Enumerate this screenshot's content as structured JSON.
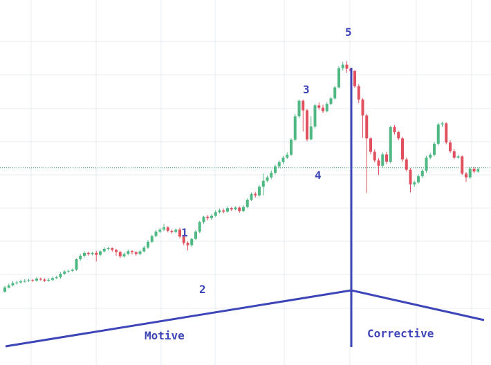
{
  "colors": {
    "background": "#ffffff",
    "grid": "#e6edf1",
    "bullish": "#4fb883",
    "bearish": "#e0505e",
    "wick_bull": "#4fb883",
    "wick_bear": "#e0505e",
    "annotation": "#3d45b8",
    "price_line": "#2f9c6a"
  },
  "chart_data": {
    "type": "candlestick",
    "title": "",
    "xlabel": "",
    "ylabel": "",
    "grid": true,
    "ylim": [
      0,
      1
    ],
    "current_price_line": 0.565,
    "candles": [
      [
        0.138,
        0.153,
        0.135,
        0.159
      ],
      [
        0.152,
        0.16,
        0.149,
        0.166
      ],
      [
        0.16,
        0.168,
        0.157,
        0.175
      ],
      [
        0.168,
        0.17,
        0.162,
        0.176
      ],
      [
        0.17,
        0.174,
        0.166,
        0.179
      ],
      [
        0.173,
        0.176,
        0.169,
        0.181
      ],
      [
        0.176,
        0.178,
        0.171,
        0.183
      ],
      [
        0.178,
        0.176,
        0.172,
        0.182
      ],
      [
        0.176,
        0.183,
        0.173,
        0.188
      ],
      [
        0.183,
        0.18,
        0.176,
        0.187
      ],
      [
        0.18,
        0.176,
        0.172,
        0.184
      ],
      [
        0.176,
        0.179,
        0.173,
        0.185
      ],
      [
        0.179,
        0.185,
        0.175,
        0.19
      ],
      [
        0.185,
        0.188,
        0.181,
        0.193
      ],
      [
        0.188,
        0.2,
        0.184,
        0.205
      ],
      [
        0.2,
        0.208,
        0.196,
        0.212
      ],
      [
        0.208,
        0.21,
        0.203,
        0.214
      ],
      [
        0.21,
        0.214,
        0.206,
        0.218
      ],
      [
        0.214,
        0.25,
        0.21,
        0.253
      ],
      [
        0.25,
        0.262,
        0.245,
        0.268
      ],
      [
        0.262,
        0.272,
        0.256,
        0.278
      ],
      [
        0.272,
        0.268,
        0.262,
        0.276
      ],
      [
        0.268,
        0.272,
        0.263,
        0.276
      ],
      [
        0.272,
        0.265,
        0.242,
        0.279
      ],
      [
        0.265,
        0.277,
        0.26,
        0.281
      ],
      [
        0.277,
        0.286,
        0.273,
        0.292
      ],
      [
        0.286,
        0.288,
        0.281,
        0.293
      ],
      [
        0.288,
        0.282,
        0.276,
        0.291
      ],
      [
        0.282,
        0.275,
        0.262,
        0.286
      ],
      [
        0.275,
        0.26,
        0.254,
        0.279
      ],
      [
        0.26,
        0.268,
        0.256,
        0.273
      ],
      [
        0.268,
        0.278,
        0.264,
        0.283
      ],
      [
        0.278,
        0.274,
        0.266,
        0.281
      ],
      [
        0.274,
        0.268,
        0.262,
        0.278
      ],
      [
        0.268,
        0.277,
        0.264,
        0.282
      ],
      [
        0.277,
        0.29,
        0.273,
        0.296
      ],
      [
        0.29,
        0.31,
        0.286,
        0.316
      ],
      [
        0.31,
        0.33,
        0.306,
        0.334
      ],
      [
        0.33,
        0.345,
        0.326,
        0.35
      ],
      [
        0.345,
        0.352,
        0.34,
        0.358
      ],
      [
        0.352,
        0.36,
        0.348,
        0.372
      ],
      [
        0.36,
        0.348,
        0.342,
        0.364
      ],
      [
        0.348,
        0.344,
        0.338,
        0.352
      ],
      [
        0.344,
        0.352,
        0.34,
        0.356
      ],
      [
        0.352,
        0.328,
        0.322,
        0.358
      ],
      [
        0.328,
        0.306,
        0.298,
        0.334
      ],
      [
        0.306,
        0.298,
        0.28,
        0.312
      ],
      [
        0.298,
        0.32,
        0.292,
        0.324
      ],
      [
        0.32,
        0.345,
        0.316,
        0.35
      ],
      [
        0.345,
        0.378,
        0.34,
        0.382
      ],
      [
        0.378,
        0.396,
        0.372,
        0.4
      ],
      [
        0.396,
        0.392,
        0.384,
        0.402
      ],
      [
        0.392,
        0.4,
        0.386,
        0.406
      ],
      [
        0.4,
        0.412,
        0.395,
        0.418
      ],
      [
        0.412,
        0.418,
        0.408,
        0.424
      ],
      [
        0.418,
        0.414,
        0.408,
        0.424
      ],
      [
        0.414,
        0.426,
        0.41,
        0.432
      ],
      [
        0.426,
        0.422,
        0.416,
        0.43
      ],
      [
        0.422,
        0.428,
        0.418,
        0.432
      ],
      [
        0.428,
        0.416,
        0.41,
        0.432
      ],
      [
        0.416,
        0.43,
        0.412,
        0.436
      ],
      [
        0.43,
        0.455,
        0.426,
        0.46
      ],
      [
        0.455,
        0.475,
        0.45,
        0.48
      ],
      [
        0.475,
        0.47,
        0.462,
        0.482
      ],
      [
        0.47,
        0.5,
        0.465,
        0.506
      ],
      [
        0.5,
        0.52,
        0.47,
        0.545
      ],
      [
        0.52,
        0.532,
        0.515,
        0.538
      ],
      [
        0.532,
        0.548,
        0.526,
        0.556
      ],
      [
        0.548,
        0.57,
        0.542,
        0.576
      ],
      [
        0.57,
        0.585,
        0.564,
        0.59
      ],
      [
        0.585,
        0.6,
        0.578,
        0.606
      ],
      [
        0.6,
        0.61,
        0.595,
        0.618
      ],
      [
        0.61,
        0.662,
        0.606,
        0.666
      ],
      [
        0.662,
        0.742,
        0.656,
        0.75
      ],
      [
        0.742,
        0.796,
        0.736,
        0.8
      ],
      [
        0.796,
        0.763,
        0.69,
        0.8
      ],
      [
        0.763,
        0.663,
        0.656,
        0.768
      ],
      [
        0.663,
        0.707,
        0.66,
        0.742
      ],
      [
        0.707,
        0.78,
        0.7,
        0.785
      ],
      [
        0.78,
        0.772,
        0.765,
        0.79
      ],
      [
        0.772,
        0.76,
        0.754,
        0.782
      ],
      [
        0.76,
        0.785,
        0.756,
        0.79
      ],
      [
        0.785,
        0.804,
        0.781,
        0.808
      ],
      [
        0.804,
        0.842,
        0.8,
        0.846
      ],
      [
        0.842,
        0.908,
        0.838,
        0.915
      ],
      [
        0.908,
        0.92,
        0.9,
        0.93
      ],
      [
        0.92,
        0.906,
        0.892,
        0.932
      ],
      [
        0.906,
        0.898,
        0.886,
        0.908
      ],
      [
        0.898,
        0.846,
        0.84,
        0.902
      ],
      [
        0.846,
        0.8,
        0.788,
        0.852
      ],
      [
        0.8,
        0.745,
        0.668,
        0.805
      ],
      [
        0.745,
        0.666,
        0.478,
        0.75
      ],
      [
        0.666,
        0.62,
        0.612,
        0.67
      ],
      [
        0.62,
        0.59,
        0.584,
        0.628
      ],
      [
        0.59,
        0.572,
        0.54,
        0.598
      ],
      [
        0.572,
        0.611,
        0.565,
        0.618
      ],
      [
        0.611,
        0.586,
        0.578,
        0.62
      ],
      [
        0.586,
        0.705,
        0.58,
        0.71
      ],
      [
        0.705,
        0.688,
        0.68,
        0.712
      ],
      [
        0.688,
        0.666,
        0.66,
        0.692
      ],
      [
        0.666,
        0.594,
        0.585,
        0.672
      ],
      [
        0.594,
        0.558,
        0.552,
        0.6
      ],
      [
        0.558,
        0.508,
        0.48,
        0.564
      ],
      [
        0.508,
        0.515,
        0.5,
        0.52
      ],
      [
        0.515,
        0.536,
        0.51,
        0.542
      ],
      [
        0.536,
        0.555,
        0.53,
        0.56
      ],
      [
        0.555,
        0.6,
        0.548,
        0.606
      ],
      [
        0.6,
        0.61,
        0.594,
        0.616
      ],
      [
        0.61,
        0.648,
        0.604,
        0.654
      ],
      [
        0.648,
        0.714,
        0.642,
        0.72
      ],
      [
        0.714,
        0.718,
        0.706,
        0.724
      ],
      [
        0.718,
        0.652,
        0.646,
        0.722
      ],
      [
        0.652,
        0.622,
        0.616,
        0.66
      ],
      [
        0.622,
        0.6,
        0.594,
        0.63
      ],
      [
        0.6,
        0.604,
        0.596,
        0.61
      ],
      [
        0.604,
        0.545,
        0.54,
        0.608
      ],
      [
        0.545,
        0.532,
        0.516,
        0.55
      ],
      [
        0.532,
        0.562,
        0.526,
        0.568
      ],
      [
        0.562,
        0.552,
        0.546,
        0.568
      ],
      [
        0.552,
        0.56,
        0.548,
        0.566
      ]
    ],
    "annotations": {
      "wave_labels": [
        "1",
        "2",
        "3",
        "4",
        "5"
      ],
      "phases": [
        "Motive",
        "Corrective"
      ]
    }
  }
}
